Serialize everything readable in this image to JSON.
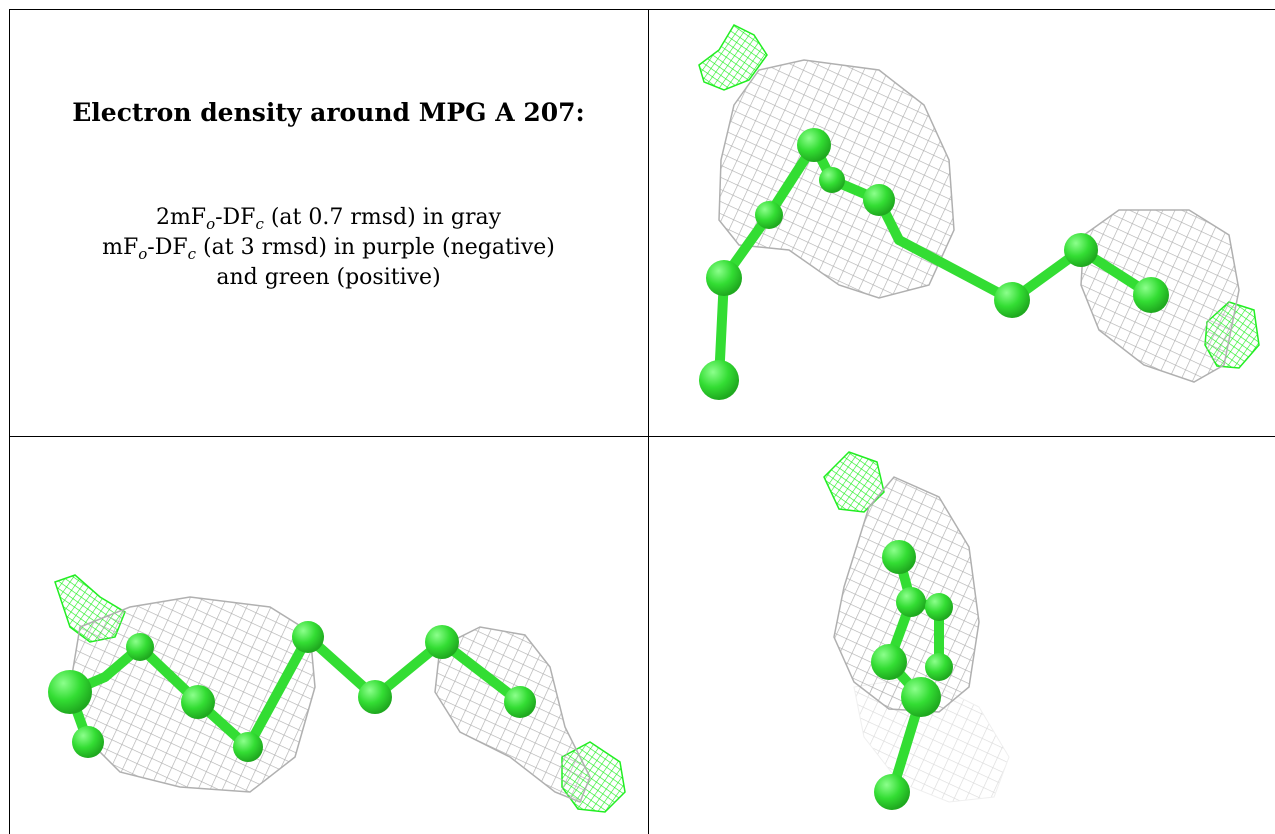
{
  "title": "Electron density around MPG A 207:",
  "legend": {
    "line1": {
      "pre": "2mF",
      "sub1": "o",
      "mid": "-DF",
      "sub2": "c",
      "post": " (at 0.7 rmsd) in gray"
    },
    "line2": {
      "pre": "mF",
      "sub1": "o",
      "mid": "-DF",
      "sub2": "c",
      "post": " (at 3 rmsd) in purple (negative)"
    },
    "line3": "and green (positive)"
  },
  "panels": [
    {
      "view": "top-right",
      "density_2fofc_color": "#b4b4b4",
      "density_positive_color": "#22ee22",
      "model_color": "#33dd33"
    },
    {
      "view": "bottom-left",
      "density_2fofc_color": "#b4b4b4",
      "density_positive_color": "#22ee22",
      "model_color": "#33dd33"
    },
    {
      "view": "bottom-right",
      "density_2fofc_color": "#b4b4b4",
      "density_positive_color": "#22ee22",
      "model_color": "#33dd33"
    }
  ],
  "colors": {
    "mesh_gray": "#b4b4b4",
    "mesh_green": "#22ee22",
    "atom_green": "#33dd33",
    "border": "#000000"
  }
}
